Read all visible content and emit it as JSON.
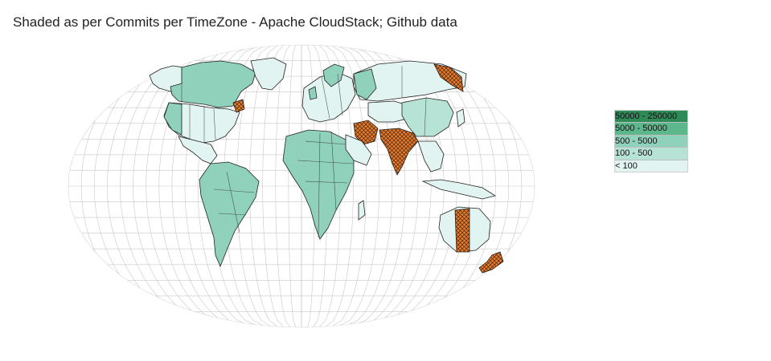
{
  "title": "Shaded as per Commits per TimeZone - Apache CloudStack; Github data",
  "legend": {
    "items": [
      {
        "label": "50000 - 250000",
        "color": "#2e8b57"
      },
      {
        "label": "5000 - 50000",
        "color": "#5cb88a"
      },
      {
        "label": "500 - 5000",
        "color": "#8fd1bb"
      },
      {
        "label": "100 - 500",
        "color": "#b7e3d6"
      },
      {
        "label": "< 100",
        "color": "#e2f4f1"
      }
    ]
  },
  "highlight": {
    "color": "#f07a24",
    "pattern": "hatched"
  }
}
